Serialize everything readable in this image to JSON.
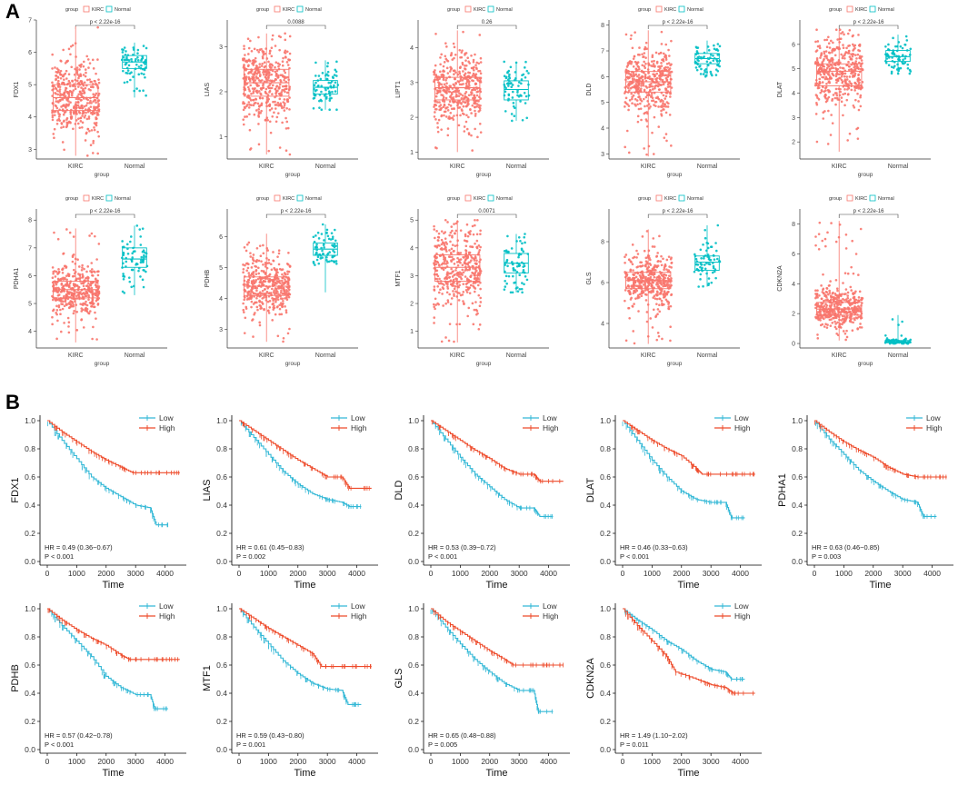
{
  "panel_labels": {
    "a": "A",
    "b": "B"
  },
  "colors": {
    "kirc": "#F8766D",
    "normal": "#00BFC4",
    "km_low": "#33B8D6",
    "km_high": "#EE4B2B"
  },
  "boxplot_common": {
    "legend_title": "group",
    "legend_kirc": "KIRC",
    "legend_normal": "Normal",
    "xlabel": "group",
    "categories": [
      "KIRC",
      "Normal"
    ]
  },
  "km_common": {
    "xlabel": "Time",
    "legend_low": "Low",
    "legend_high": "High",
    "xticks": [
      0,
      1000,
      2000,
      3000,
      4000
    ],
    "yticks": [
      "0.0",
      "0.2",
      "0.4",
      "0.6",
      "0.8",
      "1.0"
    ]
  },
  "chart_data": [
    {
      "type": "box",
      "gene": "FDX1",
      "ylabel": "FDX1",
      "pval": "p < 2.22e-16",
      "ylim": [
        2.7,
        7.0
      ],
      "yticks": [
        3,
        4,
        5,
        6,
        7
      ],
      "kirc": {
        "q1": 4.2,
        "med": 4.6,
        "q3": 5.0,
        "lo": 2.8,
        "hi": 6.8
      },
      "normal": {
        "q1": 5.5,
        "med": 5.7,
        "q3": 5.9,
        "lo": 4.6,
        "hi": 6.3
      }
    },
    {
      "type": "box",
      "gene": "LIAS",
      "ylabel": "LIAS",
      "pval": "0.0088",
      "ylim": [
        0.5,
        3.6
      ],
      "yticks": [
        1,
        2,
        3
      ],
      "kirc": {
        "q1": 1.9,
        "med": 2.2,
        "q3": 2.5,
        "lo": 0.6,
        "hi": 3.3
      },
      "normal": {
        "q1": 1.95,
        "med": 2.1,
        "q3": 2.25,
        "lo": 1.6,
        "hi": 2.7
      }
    },
    {
      "type": "box",
      "gene": "LIPT1",
      "ylabel": "LIPT1",
      "pval": "0.26",
      "ylim": [
        0.8,
        4.8
      ],
      "yticks": [
        1,
        2,
        3,
        4
      ],
      "kirc": {
        "q1": 2.5,
        "med": 2.85,
        "q3": 3.15,
        "lo": 1.0,
        "hi": 4.5
      },
      "normal": {
        "q1": 2.5,
        "med": 2.8,
        "q3": 3.05,
        "lo": 1.9,
        "hi": 3.6
      }
    },
    {
      "type": "box",
      "gene": "DLD",
      "ylabel": "DLD",
      "pval": "p < 2.22e-16",
      "ylim": [
        2.8,
        8.2
      ],
      "yticks": [
        3,
        4,
        5,
        6,
        7,
        8
      ],
      "kirc": {
        "q1": 5.4,
        "med": 5.8,
        "q3": 6.2,
        "lo": 2.9,
        "hi": 7.8
      },
      "normal": {
        "q1": 6.5,
        "med": 6.7,
        "q3": 6.9,
        "lo": 6.0,
        "hi": 7.4
      }
    },
    {
      "type": "box",
      "gene": "DLAT",
      "ylabel": "DLAT",
      "pval": "p < 2.22e-16",
      "ylim": [
        1.3,
        7.0
      ],
      "yticks": [
        2,
        3,
        4,
        5,
        6
      ],
      "kirc": {
        "q1": 4.3,
        "med": 4.9,
        "q3": 5.2,
        "lo": 1.6,
        "hi": 6.6
      },
      "normal": {
        "q1": 5.3,
        "med": 5.5,
        "q3": 5.75,
        "lo": 4.8,
        "hi": 6.4
      }
    },
    {
      "type": "box",
      "gene": "PDHA1",
      "ylabel": "PDHA1",
      "pval": "p < 2.22e-16",
      "ylim": [
        3.4,
        8.4
      ],
      "yticks": [
        4,
        5,
        6,
        7,
        8
      ],
      "kirc": {
        "q1": 5.2,
        "med": 5.5,
        "q3": 5.8,
        "lo": 3.6,
        "hi": 7.7
      },
      "normal": {
        "q1": 6.3,
        "med": 6.6,
        "q3": 7.0,
        "lo": 5.3,
        "hi": 7.8
      }
    },
    {
      "type": "box",
      "gene": "PDHB",
      "ylabel": "PDHB",
      "pval": "p < 2.22e-16",
      "ylim": [
        2.4,
        6.9
      ],
      "yticks": [
        3,
        4,
        5,
        6
      ],
      "kirc": {
        "q1": 4.1,
        "med": 4.4,
        "q3": 4.7,
        "lo": 2.6,
        "hi": 6.1
      },
      "normal": {
        "q1": 5.4,
        "med": 5.6,
        "q3": 5.8,
        "lo": 4.2,
        "hi": 6.4
      }
    },
    {
      "type": "box",
      "gene": "MTF1",
      "ylabel": "MTF1",
      "pval": "0.0071",
      "ylim": [
        0.4,
        5.4
      ],
      "yticks": [
        1,
        2,
        3,
        4,
        5
      ],
      "kirc": {
        "q1": 2.8,
        "med": 3.3,
        "q3": 3.75,
        "lo": 0.6,
        "hi": 5.0
      },
      "normal": {
        "q1": 3.1,
        "med": 3.45,
        "q3": 3.8,
        "lo": 2.4,
        "hi": 4.5
      }
    },
    {
      "type": "box",
      "gene": "GLS",
      "ylabel": "GLS",
      "pval": "p < 2.22e-16",
      "ylim": [
        2.8,
        9.6
      ],
      "yticks": [
        4,
        6,
        8
      ],
      "kirc": {
        "q1": 5.7,
        "med": 6.1,
        "q3": 6.5,
        "lo": 3.0,
        "hi": 8.6
      },
      "normal": {
        "q1": 6.6,
        "med": 7.0,
        "q3": 7.3,
        "lo": 5.8,
        "hi": 8.8
      }
    },
    {
      "type": "box",
      "gene": "CDKN2A",
      "ylabel": "CDKN2A",
      "pval": "p < 2.22e-16",
      "ylim": [
        -0.3,
        9.0
      ],
      "yticks": [
        0,
        2,
        4,
        6,
        8
      ],
      "kirc": {
        "q1": 1.9,
        "med": 2.3,
        "q3": 2.75,
        "lo": 0.2,
        "hi": 8.2
      },
      "normal": {
        "q1": 0.05,
        "med": 0.1,
        "q3": 0.2,
        "lo": 0.0,
        "hi": 1.9
      }
    },
    {
      "type": "km",
      "gene": "FDX1",
      "ylabel": "FDX1",
      "hr": "HR = 0.49 (0.36−0.67)",
      "p": "P < 0.001",
      "low": [
        [
          0,
          1.0
        ],
        [
          500,
          0.86
        ],
        [
          1000,
          0.73
        ],
        [
          1500,
          0.6
        ],
        [
          2000,
          0.52
        ],
        [
          2500,
          0.46
        ],
        [
          3000,
          0.4
        ],
        [
          3500,
          0.38
        ],
        [
          3700,
          0.26
        ],
        [
          4100,
          0.26
        ]
      ],
      "high": [
        [
          0,
          1.0
        ],
        [
          500,
          0.92
        ],
        [
          1000,
          0.85
        ],
        [
          1500,
          0.78
        ],
        [
          2000,
          0.72
        ],
        [
          2500,
          0.67
        ],
        [
          2900,
          0.63
        ],
        [
          3500,
          0.63
        ],
        [
          4000,
          0.63
        ],
        [
          4500,
          0.63
        ]
      ]
    },
    {
      "type": "km",
      "gene": "LIAS",
      "ylabel": "LIAS",
      "hr": "HR = 0.61 (0.45−0.83)",
      "p": "P = 0.002",
      "low": [
        [
          0,
          1.0
        ],
        [
          500,
          0.88
        ],
        [
          1000,
          0.76
        ],
        [
          1500,
          0.64
        ],
        [
          2000,
          0.55
        ],
        [
          2500,
          0.48
        ],
        [
          3000,
          0.44
        ],
        [
          3500,
          0.42
        ],
        [
          3750,
          0.39
        ],
        [
          4150,
          0.39
        ]
      ],
      "high": [
        [
          0,
          1.0
        ],
        [
          500,
          0.93
        ],
        [
          1000,
          0.86
        ],
        [
          1500,
          0.79
        ],
        [
          2000,
          0.72
        ],
        [
          2500,
          0.66
        ],
        [
          3000,
          0.6
        ],
        [
          3500,
          0.6
        ],
        [
          3750,
          0.52
        ],
        [
          4500,
          0.52
        ]
      ]
    },
    {
      "type": "km",
      "gene": "DLD",
      "ylabel": "DLD",
      "hr": "HR = 0.53 (0.39−0.72)",
      "p": "P < 0.001",
      "low": [
        [
          0,
          1.0
        ],
        [
          500,
          0.87
        ],
        [
          1000,
          0.74
        ],
        [
          1500,
          0.62
        ],
        [
          2000,
          0.53
        ],
        [
          2500,
          0.44
        ],
        [
          3000,
          0.38
        ],
        [
          3500,
          0.38
        ],
        [
          3700,
          0.32
        ],
        [
          4150,
          0.32
        ]
      ],
      "high": [
        [
          0,
          1.0
        ],
        [
          500,
          0.93
        ],
        [
          1000,
          0.86
        ],
        [
          1500,
          0.79
        ],
        [
          2000,
          0.73
        ],
        [
          2500,
          0.66
        ],
        [
          3000,
          0.62
        ],
        [
          3500,
          0.62
        ],
        [
          3700,
          0.57
        ],
        [
          4500,
          0.57
        ]
      ]
    },
    {
      "type": "km",
      "gene": "DLAT",
      "ylabel": "DLAT",
      "hr": "HR = 0.46 (0.33−0.63)",
      "p": "P < 0.001",
      "low": [
        [
          0,
          1.0
        ],
        [
          500,
          0.86
        ],
        [
          1000,
          0.72
        ],
        [
          1500,
          0.6
        ],
        [
          2000,
          0.5
        ],
        [
          2500,
          0.44
        ],
        [
          3000,
          0.42
        ],
        [
          3500,
          0.42
        ],
        [
          3700,
          0.31
        ],
        [
          4150,
          0.31
        ]
      ],
      "high": [
        [
          0,
          1.0
        ],
        [
          500,
          0.93
        ],
        [
          1000,
          0.86
        ],
        [
          1500,
          0.8
        ],
        [
          2000,
          0.75
        ],
        [
          2500,
          0.66
        ],
        [
          2700,
          0.62
        ],
        [
          3500,
          0.62
        ],
        [
          4000,
          0.62
        ],
        [
          4500,
          0.62
        ]
      ]
    },
    {
      "type": "km",
      "gene": "PDHA1",
      "ylabel": "PDHA1",
      "hr": "HR = 0.63 (0.46−0.85)",
      "p": "P = 0.003",
      "low": [
        [
          0,
          1.0
        ],
        [
          500,
          0.87
        ],
        [
          1000,
          0.76
        ],
        [
          1500,
          0.65
        ],
        [
          2000,
          0.57
        ],
        [
          2500,
          0.5
        ],
        [
          3000,
          0.44
        ],
        [
          3500,
          0.42
        ],
        [
          3700,
          0.32
        ],
        [
          4150,
          0.32
        ]
      ],
      "high": [
        [
          0,
          1.0
        ],
        [
          500,
          0.92
        ],
        [
          1000,
          0.85
        ],
        [
          1500,
          0.79
        ],
        [
          2000,
          0.74
        ],
        [
          2500,
          0.67
        ],
        [
          3000,
          0.62
        ],
        [
          3500,
          0.6
        ],
        [
          4000,
          0.6
        ],
        [
          4500,
          0.6
        ]
      ]
    },
    {
      "type": "km",
      "gene": "PDHB",
      "ylabel": "PDHB",
      "hr": "HR = 0.57 (0.42−0.78)",
      "p": "P < 0.001",
      "low": [
        [
          0,
          1.0
        ],
        [
          500,
          0.88
        ],
        [
          1000,
          0.77
        ],
        [
          1500,
          0.66
        ],
        [
          2000,
          0.52
        ],
        [
          2500,
          0.44
        ],
        [
          3000,
          0.39
        ],
        [
          3500,
          0.39
        ],
        [
          3650,
          0.29
        ],
        [
          4100,
          0.29
        ]
      ],
      "high": [
        [
          0,
          1.0
        ],
        [
          500,
          0.92
        ],
        [
          1000,
          0.85
        ],
        [
          1500,
          0.79
        ],
        [
          2000,
          0.74
        ],
        [
          2500,
          0.67
        ],
        [
          2800,
          0.64
        ],
        [
          3500,
          0.64
        ],
        [
          4000,
          0.64
        ],
        [
          4500,
          0.64
        ]
      ]
    },
    {
      "type": "km",
      "gene": "MTF1",
      "ylabel": "MTF1",
      "hr": "HR = 0.59 (0.43−0.80)",
      "p": "P = 0.001",
      "low": [
        [
          0,
          1.0
        ],
        [
          500,
          0.87
        ],
        [
          1000,
          0.75
        ],
        [
          1500,
          0.63
        ],
        [
          2000,
          0.54
        ],
        [
          2500,
          0.47
        ],
        [
          3000,
          0.43
        ],
        [
          3500,
          0.42
        ],
        [
          3700,
          0.32
        ],
        [
          4150,
          0.32
        ]
      ],
      "high": [
        [
          0,
          1.0
        ],
        [
          500,
          0.93
        ],
        [
          1000,
          0.86
        ],
        [
          1500,
          0.8
        ],
        [
          2000,
          0.74
        ],
        [
          2500,
          0.68
        ],
        [
          2800,
          0.59
        ],
        [
          3500,
          0.59
        ],
        [
          4000,
          0.59
        ],
        [
          4500,
          0.59
        ]
      ]
    },
    {
      "type": "km",
      "gene": "GLS",
      "ylabel": "GLS",
      "hr": "HR = 0.65 (0.48−0.88)",
      "p": "P = 0.005",
      "low": [
        [
          0,
          1.0
        ],
        [
          500,
          0.87
        ],
        [
          1000,
          0.75
        ],
        [
          1500,
          0.64
        ],
        [
          2000,
          0.55
        ],
        [
          2500,
          0.47
        ],
        [
          3000,
          0.42
        ],
        [
          3500,
          0.42
        ],
        [
          3650,
          0.27
        ],
        [
          4150,
          0.27
        ]
      ],
      "high": [
        [
          0,
          1.0
        ],
        [
          500,
          0.91
        ],
        [
          1000,
          0.84
        ],
        [
          1500,
          0.77
        ],
        [
          2000,
          0.7
        ],
        [
          2500,
          0.64
        ],
        [
          2800,
          0.6
        ],
        [
          3500,
          0.6
        ],
        [
          4000,
          0.6
        ],
        [
          4500,
          0.6
        ]
      ]
    },
    {
      "type": "km",
      "gene": "CDKN2A",
      "ylabel": "CDKN2A",
      "hr": "HR = 1.49 (1.10−2.02)",
      "p": "P = 0.011",
      "low": [
        [
          0,
          1.0
        ],
        [
          500,
          0.92
        ],
        [
          1000,
          0.85
        ],
        [
          1500,
          0.77
        ],
        [
          2000,
          0.71
        ],
        [
          2500,
          0.63
        ],
        [
          3000,
          0.57
        ],
        [
          3500,
          0.55
        ],
        [
          3700,
          0.5
        ],
        [
          4150,
          0.5
        ]
      ],
      "high": [
        [
          0,
          1.0
        ],
        [
          500,
          0.88
        ],
        [
          1000,
          0.77
        ],
        [
          1500,
          0.66
        ],
        [
          1800,
          0.55
        ],
        [
          2500,
          0.5
        ],
        [
          3000,
          0.46
        ],
        [
          3500,
          0.44
        ],
        [
          3750,
          0.4
        ],
        [
          4500,
          0.4
        ]
      ]
    }
  ]
}
